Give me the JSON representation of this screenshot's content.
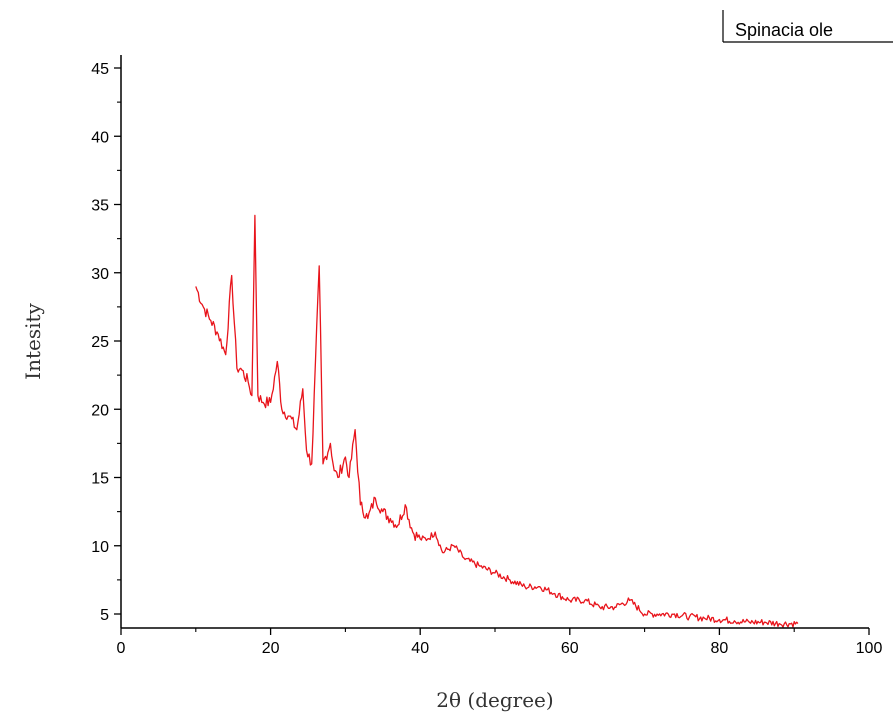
{
  "chart_data": {
    "type": "line",
    "xlabel": "2θ (degree)",
    "ylabel": "Intesity",
    "xlim": [
      0,
      100
    ],
    "ylim": [
      4,
      45
    ],
    "x_ticks": [
      0,
      20,
      40,
      60,
      80,
      100
    ],
    "y_ticks": [
      5,
      10,
      15,
      20,
      25,
      30,
      35,
      40,
      45
    ],
    "grid": false,
    "legend_position": "top-right",
    "series": [
      {
        "name": "Spinacia ole",
        "color": "#e8141b",
        "x": [
          10,
          11,
          12,
          13,
          14,
          14.8,
          15.5,
          16,
          17,
          17.5,
          17.9,
          18.3,
          19,
          20,
          20.9,
          21.5,
          22.5,
          23.5,
          24.3,
          24.8,
          25.5,
          26.5,
          27,
          28,
          28.5,
          29,
          30,
          30.5,
          31.3,
          32,
          33,
          34,
          35,
          36,
          37,
          38,
          39,
          40,
          41,
          42,
          43,
          44.5,
          46,
          48,
          50,
          52,
          54,
          56,
          58,
          60,
          62,
          64,
          66,
          68,
          70,
          72,
          74,
          76,
          78,
          80,
          82,
          84,
          86,
          88,
          90.5
        ],
        "y": [
          29,
          27.5,
          26.5,
          25.5,
          24,
          29.8,
          23,
          23,
          22,
          21,
          34.2,
          21,
          20.5,
          20.5,
          23.5,
          20,
          19.5,
          18.5,
          21.5,
          17,
          16,
          30.5,
          16,
          17.5,
          15.5,
          15,
          16.5,
          15,
          18.5,
          13,
          12,
          13.5,
          12.5,
          12,
          11.5,
          13,
          11,
          10.5,
          10.5,
          11,
          9.5,
          10,
          9,
          8.5,
          8,
          7.5,
          7,
          7,
          6.5,
          6,
          6,
          5.5,
          5.5,
          6,
          5,
          5,
          5,
          4.8,
          4.7,
          4.6,
          4.5,
          4.4,
          4.4,
          4.3,
          4.3
        ]
      }
    ]
  }
}
